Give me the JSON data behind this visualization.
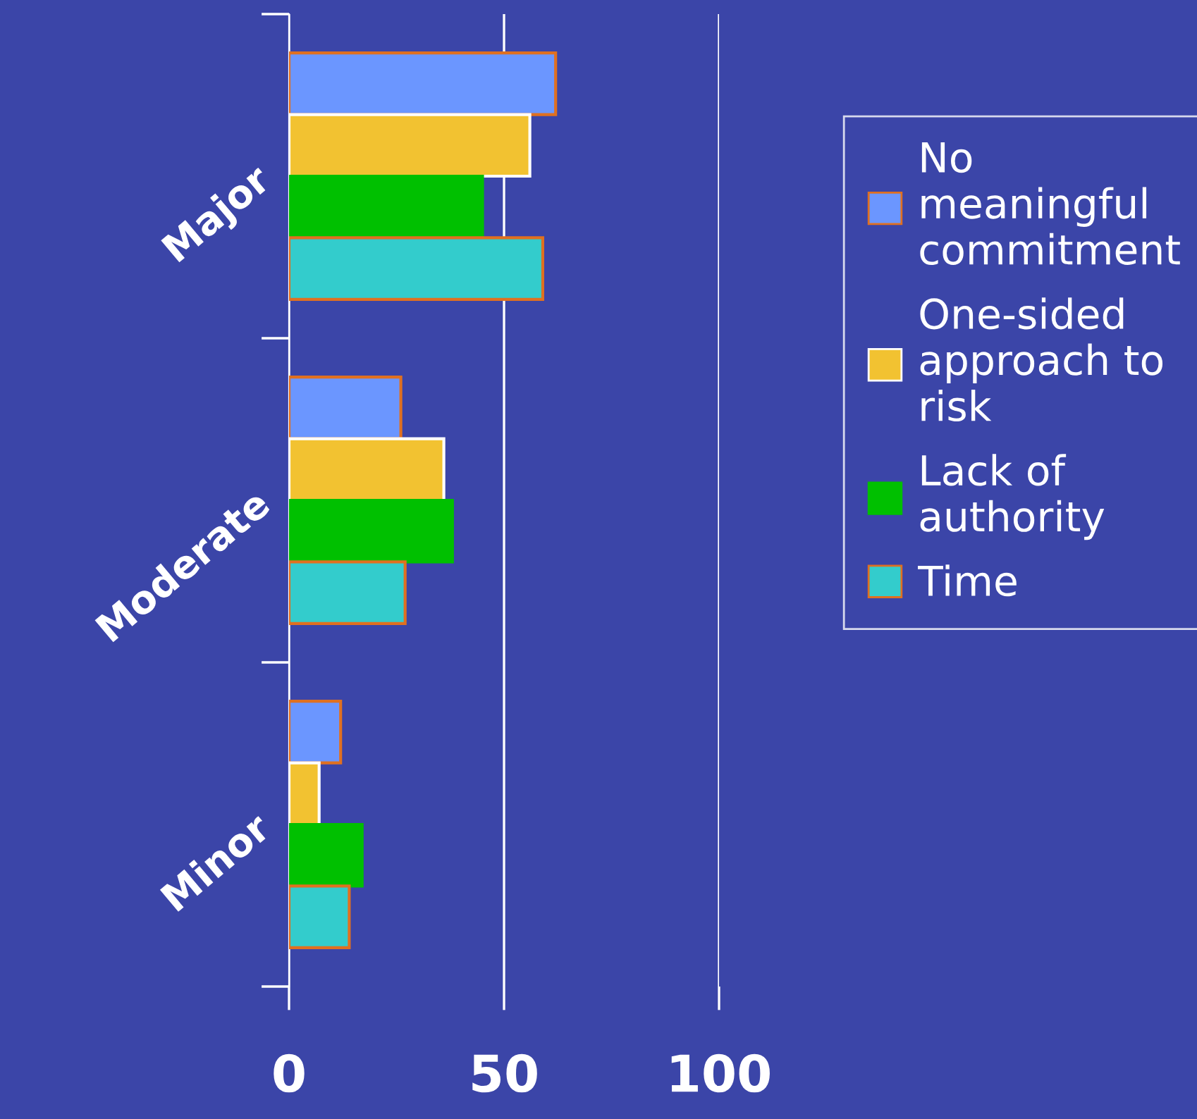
{
  "chart_data": {
    "type": "bar",
    "orientation": "horizontal",
    "categories": [
      "Major",
      "Moderate",
      "Minor"
    ],
    "series": [
      {
        "name": "No meaningful commitment",
        "color": "#6b96ff",
        "values": [
          62,
          26,
          12
        ]
      },
      {
        "name": "One-sided approach to risk",
        "color": "#f2c231",
        "values": [
          56,
          36,
          7
        ]
      },
      {
        "name": "Lack of authority",
        "color": "#00c000",
        "values": [
          45,
          38,
          17
        ]
      },
      {
        "name": "Time",
        "color": "#33cccc",
        "values": [
          59,
          27,
          14
        ]
      }
    ],
    "xlim": [
      0,
      100
    ],
    "xticks": [
      0,
      50,
      100
    ],
    "grid": "x",
    "legend": "right"
  }
}
